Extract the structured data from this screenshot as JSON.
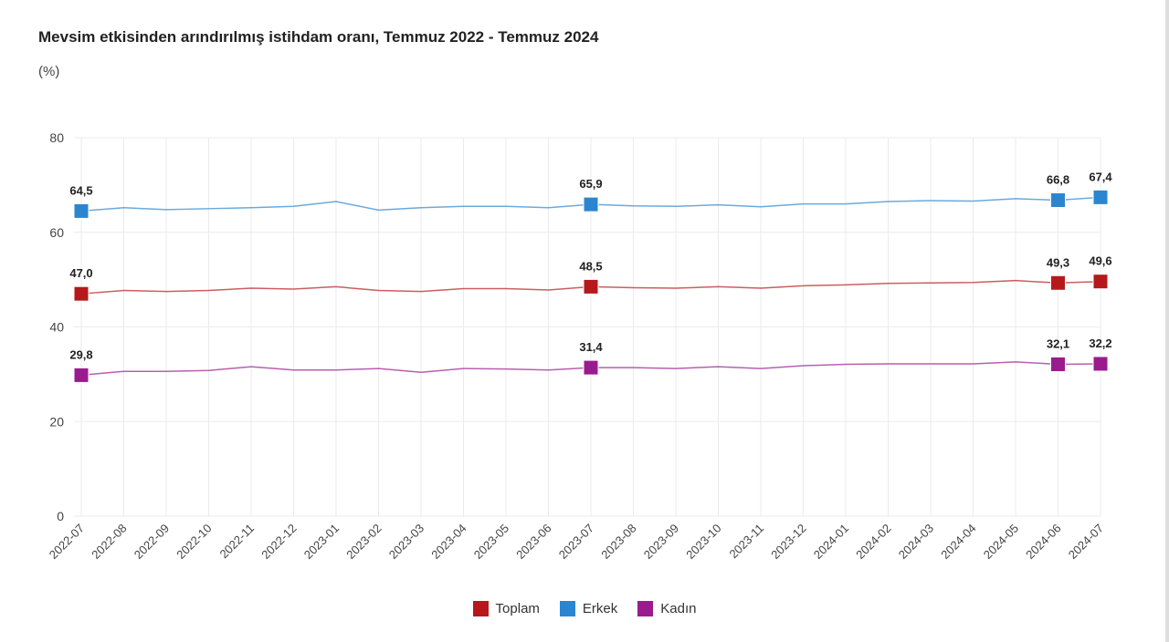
{
  "chart_data": {
    "type": "line",
    "title": "Mevsim etkisinden arındırılmış istihdam oranı, Temmuz 2022 - Temmuz 2024",
    "ylabel": "(%)",
    "xlabel": "",
    "ylim": [
      0,
      80
    ],
    "yticks": [
      "0",
      "20",
      "40",
      "60",
      "80"
    ],
    "grid": true,
    "legend_position": "bottom",
    "categories": [
      "2022-07",
      "2022-08",
      "2022-09",
      "2022-10",
      "2022-11",
      "2022-12",
      "2023-01",
      "2023-02",
      "2023-03",
      "2023-04",
      "2023-05",
      "2023-06",
      "2023-07",
      "2023-08",
      "2023-09",
      "2023-10",
      "2023-11",
      "2023-12",
      "2024-01",
      "2024-02",
      "2024-03",
      "2024-04",
      "2024-05",
      "2024-06",
      "2024-07"
    ],
    "labeled_indices": [
      0,
      12,
      23,
      24
    ],
    "series": [
      {
        "name": "Toplam",
        "color": "#b5191b",
        "values": [
          47.0,
          47.7,
          47.5,
          47.7,
          48.2,
          48.0,
          48.5,
          47.7,
          47.5,
          48.1,
          48.1,
          47.8,
          48.5,
          48.3,
          48.2,
          48.5,
          48.2,
          48.7,
          48.9,
          49.2,
          49.3,
          49.4,
          49.8,
          49.3,
          49.6
        ],
        "labels": [
          "47,0",
          "48,5",
          "49,3",
          "49,6"
        ]
      },
      {
        "name": "Erkek",
        "color": "#2b86cf",
        "values": [
          64.5,
          65.2,
          64.8,
          65.0,
          65.2,
          65.5,
          66.5,
          64.7,
          65.2,
          65.5,
          65.5,
          65.2,
          65.9,
          65.6,
          65.5,
          65.8,
          65.4,
          66.0,
          66.0,
          66.5,
          66.7,
          66.6,
          67.1,
          66.8,
          67.4
        ],
        "labels": [
          "64,5",
          "65,9",
          "66,8",
          "67,4"
        ]
      },
      {
        "name": "Kadın",
        "color": "#9a1b8e",
        "values": [
          29.8,
          30.6,
          30.6,
          30.8,
          31.6,
          30.9,
          30.9,
          31.2,
          30.4,
          31.2,
          31.1,
          30.9,
          31.4,
          31.4,
          31.2,
          31.6,
          31.2,
          31.8,
          32.1,
          32.2,
          32.2,
          32.2,
          32.6,
          32.1,
          32.2
        ],
        "labels": [
          "29,8",
          "31,4",
          "32,1",
          "32,2"
        ]
      }
    ]
  }
}
